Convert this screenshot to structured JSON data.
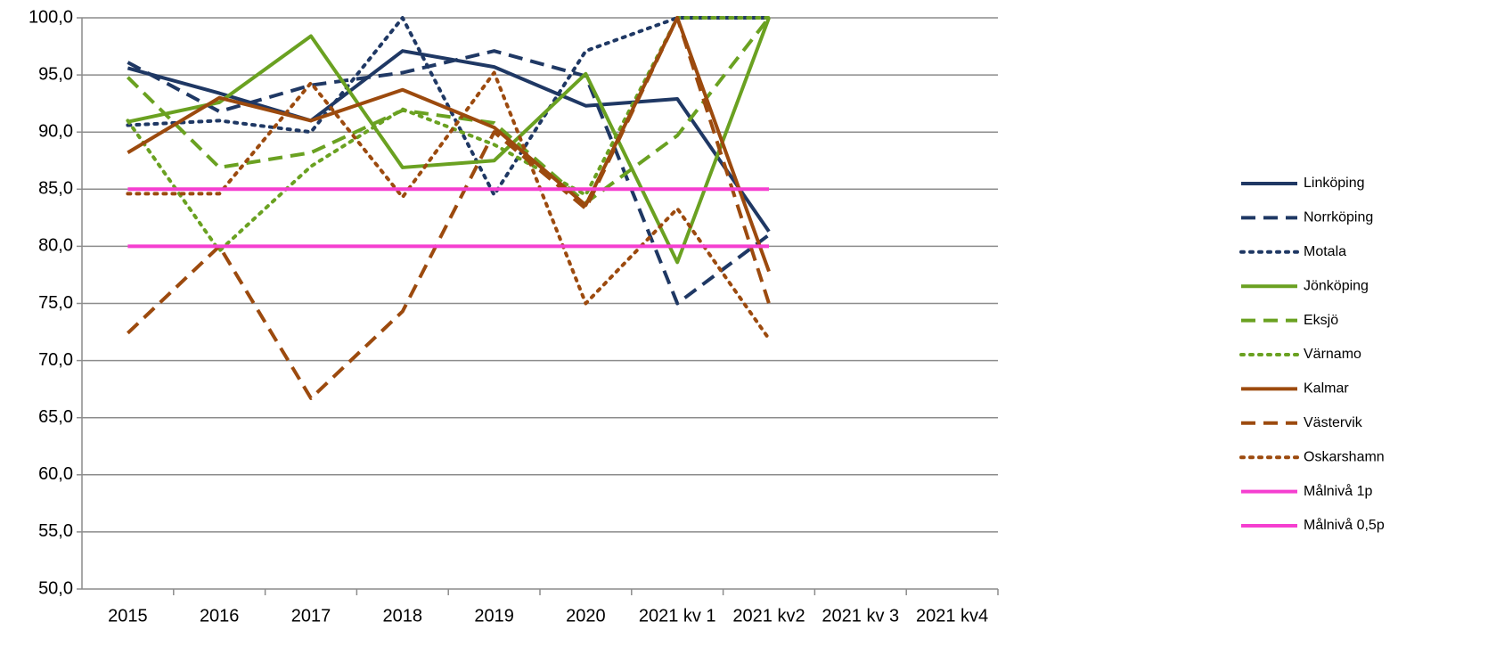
{
  "chart_data": {
    "type": "line",
    "categories": [
      "2015",
      "2016",
      "2017",
      "2018",
      "2019",
      "2020",
      "2021 kv 1",
      "2021 kv2",
      "2021 kv 3",
      "2021 kv4"
    ],
    "ylim": [
      50,
      100
    ],
    "yticks": [
      {
        "value": 50,
        "label": "50,0"
      },
      {
        "value": 55,
        "label": "55,0"
      },
      {
        "value": 60,
        "label": "60,0"
      },
      {
        "value": 65,
        "label": "65,0"
      },
      {
        "value": 70,
        "label": "70,0"
      },
      {
        "value": 75,
        "label": "75,0"
      },
      {
        "value": 80,
        "label": "80,0"
      },
      {
        "value": 85,
        "label": "85,0"
      },
      {
        "value": 90,
        "label": "90,0"
      },
      {
        "value": 95,
        "label": "95,0"
      },
      {
        "value": 100,
        "label": "100,0"
      }
    ],
    "grid": true,
    "legend": "right",
    "series": [
      {
        "name": "Linköping",
        "color": "#1f3864",
        "style": "solid",
        "values": [
          95.6,
          93.4,
          91.0,
          97.1,
          95.7,
          92.3,
          92.9,
          81.3,
          null,
          null
        ]
      },
      {
        "name": "Norrköping",
        "color": "#1f3864",
        "style": "dashed",
        "values": [
          96.1,
          91.8,
          94.1,
          95.2,
          97.1,
          94.9,
          75.0,
          81.0,
          null,
          null
        ]
      },
      {
        "name": "Motala",
        "color": "#1f3864",
        "style": "dotted",
        "values": [
          90.6,
          91.0,
          90.0,
          100.0,
          84.5,
          97.1,
          100.0,
          100.0,
          null,
          null
        ]
      },
      {
        "name": "Jönköping",
        "color": "#6aa121",
        "style": "solid",
        "values": [
          90.9,
          92.6,
          98.4,
          86.9,
          87.5,
          95.1,
          78.6,
          100.0,
          null,
          null
        ]
      },
      {
        "name": "Eksjö",
        "color": "#6aa121",
        "style": "dashed",
        "values": [
          94.8,
          86.9,
          88.2,
          91.9,
          90.8,
          83.8,
          89.7,
          100.0,
          null,
          null
        ]
      },
      {
        "name": "Värnamo",
        "color": "#6aa121",
        "style": "dotted",
        "values": [
          91.0,
          79.6,
          87.0,
          92.0,
          88.9,
          84.5,
          100.0,
          100.0,
          null,
          null
        ]
      },
      {
        "name": "Kalmar",
        "color": "#9c4a0e",
        "style": "solid",
        "values": [
          88.2,
          93.0,
          91.0,
          93.7,
          90.4,
          83.6,
          100.0,
          77.8,
          null,
          null
        ]
      },
      {
        "name": "Västervik",
        "color": "#9c4a0e",
        "style": "dashed",
        "values": [
          72.4,
          80.0,
          66.7,
          74.3,
          90.0,
          83.3,
          100.0,
          75.0,
          null,
          null
        ]
      },
      {
        "name": "Oskarshamn",
        "color": "#9c4a0e",
        "style": "dotted",
        "values": [
          84.6,
          84.6,
          94.3,
          84.3,
          95.2,
          75.0,
          83.3,
          71.9,
          null,
          null
        ]
      },
      {
        "name": "Målnivå 1p",
        "color": "#f53fd0",
        "style": "solid",
        "values": [
          85,
          85,
          85,
          85,
          85,
          85,
          85,
          85,
          null,
          null
        ]
      },
      {
        "name": "Målnivå 0,5p",
        "color": "#f53fd0",
        "style": "solid",
        "values": [
          80,
          80,
          80,
          80,
          80,
          80,
          80,
          80,
          null,
          null
        ]
      }
    ]
  }
}
